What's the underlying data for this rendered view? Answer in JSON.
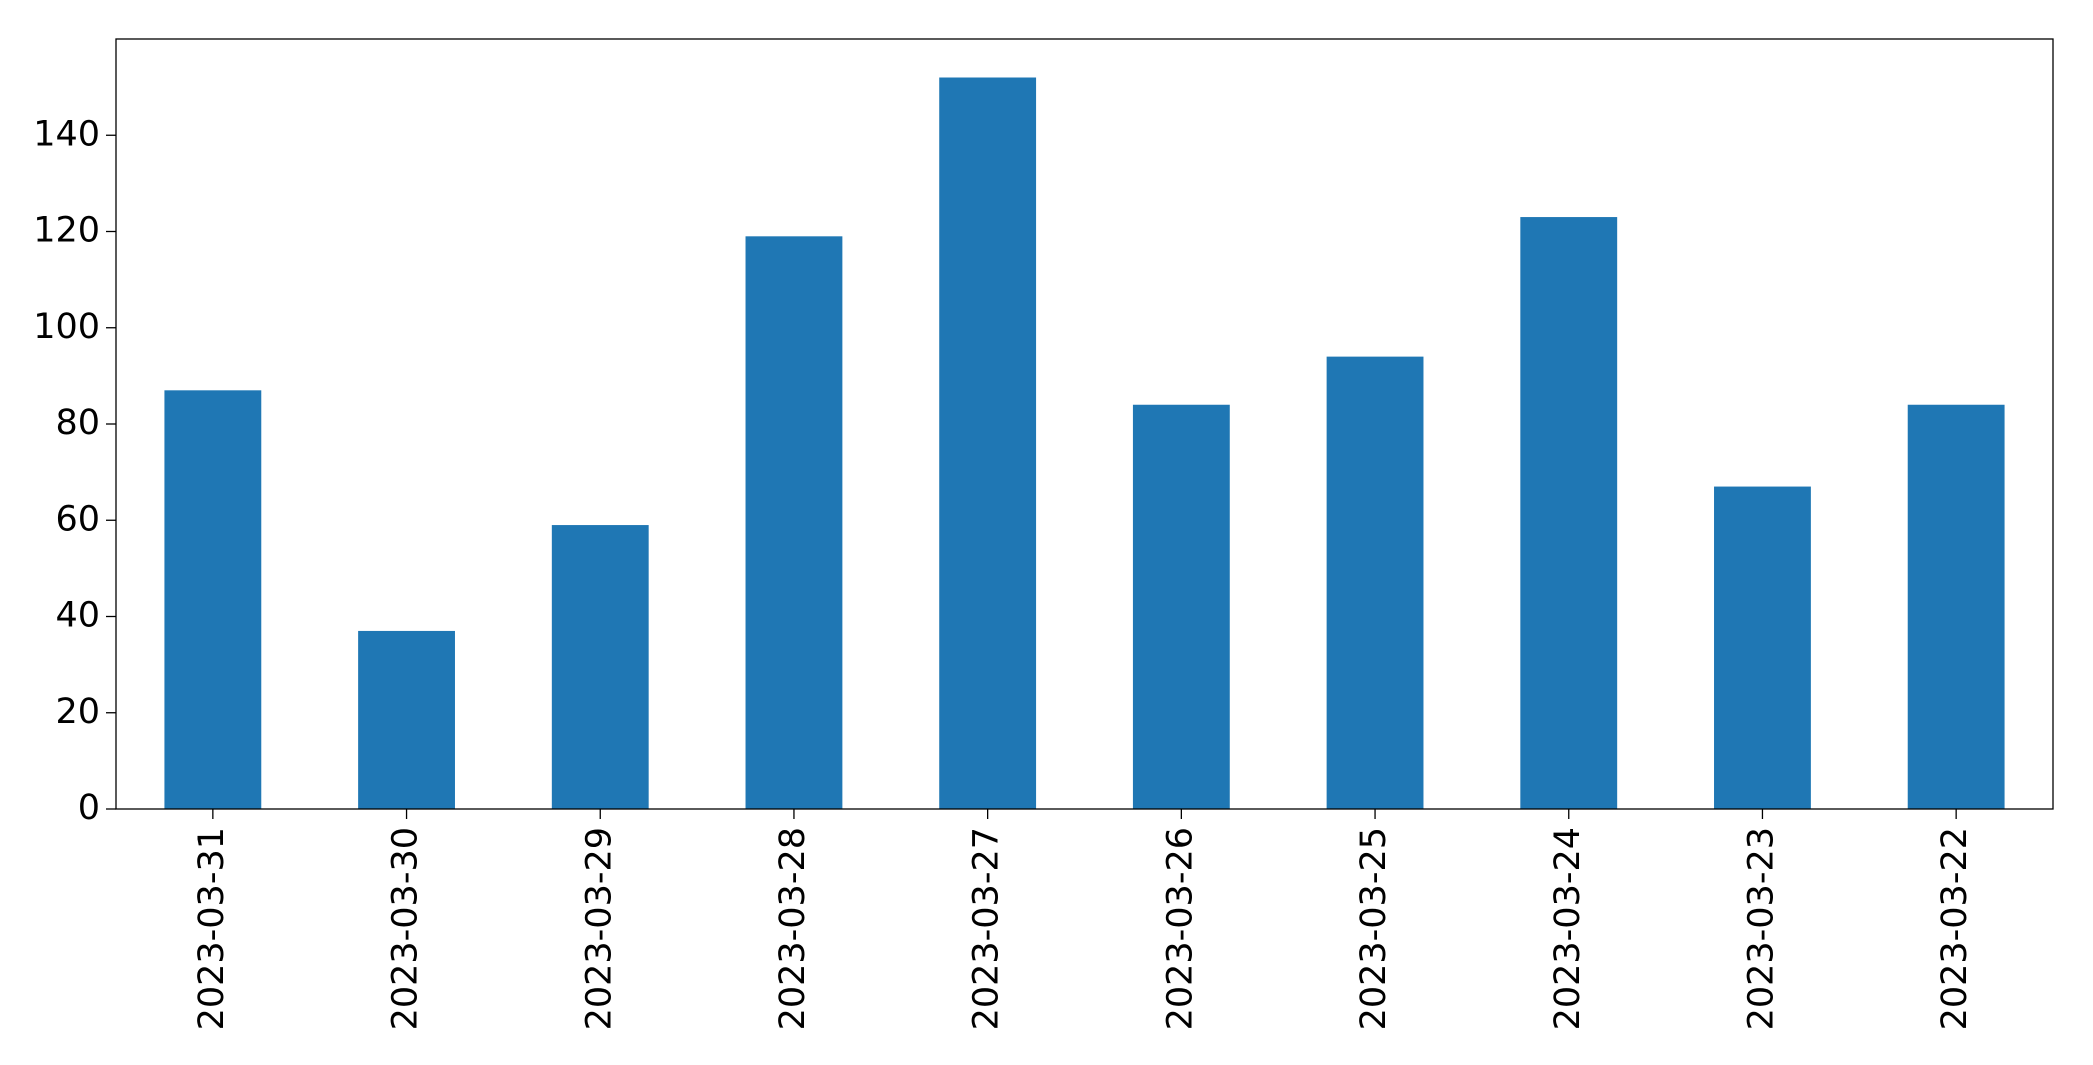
{
  "chart_data": {
    "type": "bar",
    "categories": [
      "2023-03-31",
      "2023-03-30",
      "2023-03-29",
      "2023-03-28",
      "2023-03-27",
      "2023-03-26",
      "2023-03-25",
      "2023-03-24",
      "2023-03-23",
      "2023-03-22"
    ],
    "values": [
      87,
      37,
      59,
      119,
      152,
      84,
      94,
      123,
      67,
      84
    ],
    "color": "#1f77b4",
    "ylim": [
      0,
      160
    ],
    "yticks": [
      0,
      20,
      40,
      60,
      80,
      100,
      120,
      140
    ],
    "grid": false
  }
}
